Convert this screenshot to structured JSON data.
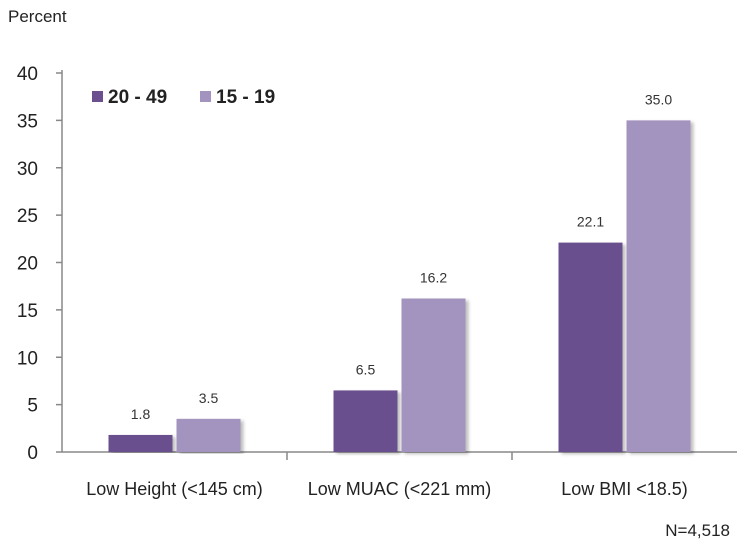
{
  "chart_data": {
    "type": "bar",
    "ylabel": "Percent",
    "ylim": [
      0,
      40
    ],
    "yticks": [
      0,
      5,
      10,
      15,
      20,
      25,
      30,
      35,
      40
    ],
    "grid": false,
    "legend_position": "top-left",
    "categories": [
      "Low Height (<145 cm)",
      "Low MUAC (<221 mm)",
      "Low BMI <18.5)"
    ],
    "series": [
      {
        "name": "20 - 49",
        "values": [
          1.8,
          6.5,
          22.1
        ],
        "value_labels": [
          "1.8",
          "6.5",
          "22.1"
        ],
        "color": "#6b4f8e"
      },
      {
        "name": "15 - 19",
        "values": [
          3.5,
          16.2,
          35.0
        ],
        "value_labels": [
          "3.5",
          "16.2",
          "35.0"
        ],
        "color": "#a294bf"
      }
    ],
    "annotation": "N=4,518"
  }
}
